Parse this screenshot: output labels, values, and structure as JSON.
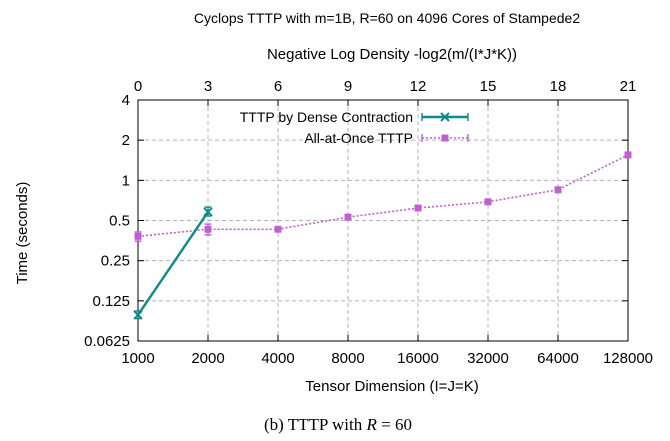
{
  "chart_data": {
    "type": "line",
    "title": "Cyclops TTTP with m=1B, R=60 on 4096 Cores of Stampede2",
    "top_axis_label": "Negative Log Density -log2(m/(I*J*K))",
    "top_ticks": [
      "0",
      "3",
      "6",
      "9",
      "12",
      "15",
      "18",
      "21"
    ],
    "xlabel": "Tensor Dimension (I=J=K)",
    "ylabel": "Time (seconds)",
    "x_categories": [
      "1000",
      "2000",
      "4000",
      "8000",
      "16000",
      "32000",
      "64000",
      "128000"
    ],
    "y_scale": "log2",
    "ylim": [
      0.0625,
      4
    ],
    "y_ticks": [
      {
        "value": 0.0625,
        "label": "0.0625"
      },
      {
        "value": 0.125,
        "label": "0.125"
      },
      {
        "value": 0.25,
        "label": "0.25"
      },
      {
        "value": 0.5,
        "label": "0.5"
      },
      {
        "value": 1,
        "label": "1"
      },
      {
        "value": 2,
        "label": "2"
      },
      {
        "value": 4,
        "label": "4"
      }
    ],
    "grid": true,
    "legend_position": "top-left",
    "series": [
      {
        "name": "TTTP by Dense Contraction",
        "color": "#0e8a8a",
        "marker": "x",
        "line": "solid",
        "x": [
          1000,
          2000
        ],
        "y": [
          0.098,
          0.58
        ],
        "err_low": [
          0.092,
          0.54
        ],
        "err_high": [
          0.105,
          0.63
        ]
      },
      {
        "name": "All-at-Once TTTP",
        "color": "#c060d0",
        "marker": "square",
        "line": "dotted",
        "x": [
          1000,
          2000,
          4000,
          8000,
          16000,
          32000,
          64000,
          128000
        ],
        "y": [
          0.38,
          0.43,
          0.43,
          0.53,
          0.62,
          0.69,
          0.85,
          1.55
        ],
        "err_low": [
          0.35,
          0.39,
          0.42,
          0.52,
          0.61,
          0.68,
          0.84,
          1.52
        ],
        "err_high": [
          0.41,
          0.47,
          0.44,
          0.54,
          0.63,
          0.7,
          0.86,
          1.58
        ]
      }
    ]
  },
  "caption": {
    "prefix": "(b)  TTTP with ",
    "variable": "R",
    "suffix": " = 60"
  }
}
